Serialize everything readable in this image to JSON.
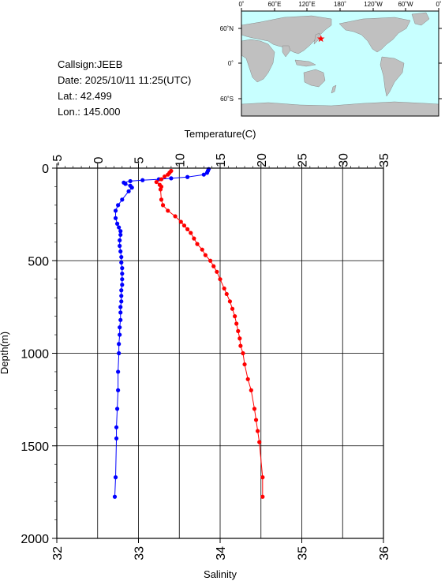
{
  "header": {
    "callsign": "Callsign:JEEB",
    "date": "Date:  2025/10/11 11:25(UTC)",
    "lat": "Lat.:  42.499",
    "lon": "Lon.:  145.000"
  },
  "map": {
    "top_labels": [
      "0˚",
      "60˚E",
      "120˚E",
      "180˚",
      "120˚W",
      "60˚W",
      "0˚"
    ],
    "side_labels": [
      "60˚N",
      "0˚",
      "60˚S"
    ],
    "ocean_color": "#c8ffff",
    "land_color": "#c0c0c0",
    "marker_color": "#ff0000",
    "station": {
      "lat": 42.499,
      "lon": 145.0
    }
  },
  "chart_data": {
    "type": "scatter",
    "ylabel": "Depth(m)",
    "x_top_label": "Temperature(C)",
    "x_bottom_label": "Salinity",
    "y_ticks": [
      "0",
      "500",
      "1000",
      "1500",
      "2000"
    ],
    "temp_ticks": [
      "-5",
      "0",
      "5",
      "10",
      "15",
      "20",
      "25",
      "30",
      "35"
    ],
    "sal_ticks": [
      "32",
      "33",
      "34",
      "35",
      "36"
    ],
    "ylim": [
      0,
      2000
    ],
    "temp_lim": [
      -5,
      35
    ],
    "sal_lim": [
      32,
      36
    ],
    "series": [
      {
        "axis": "temperature",
        "color": "#0000ff",
        "points": [
          [
            13.6,
            5
          ],
          [
            13.5,
            15
          ],
          [
            13.4,
            25
          ],
          [
            13.0,
            35
          ],
          [
            11.0,
            48
          ],
          [
            9.0,
            55
          ],
          [
            7.5,
            60
          ],
          [
            5.5,
            65
          ],
          [
            4.0,
            70
          ],
          [
            3.2,
            78
          ],
          [
            3.4,
            85
          ],
          [
            4.0,
            95
          ],
          [
            4.2,
            105
          ],
          [
            3.8,
            125
          ],
          [
            3.0,
            170
          ],
          [
            2.5,
            200
          ],
          [
            2.2,
            230
          ],
          [
            2.2,
            270
          ],
          [
            2.4,
            300
          ],
          [
            2.6,
            320
          ],
          [
            2.8,
            340
          ],
          [
            2.8,
            360
          ],
          [
            2.7,
            390
          ],
          [
            2.7,
            420
          ],
          [
            2.8,
            450
          ],
          [
            2.9,
            480
          ],
          [
            2.9,
            510
          ],
          [
            3.0,
            540
          ],
          [
            3.0,
            570
          ],
          [
            3.0,
            600
          ],
          [
            3.0,
            630
          ],
          [
            2.9,
            660
          ],
          [
            2.9,
            690
          ],
          [
            2.9,
            720
          ],
          [
            2.8,
            750
          ],
          [
            2.8,
            780
          ],
          [
            2.8,
            820
          ],
          [
            2.7,
            860
          ],
          [
            2.7,
            900
          ],
          [
            2.6,
            950
          ],
          [
            2.6,
            1000
          ],
          [
            2.5,
            1100
          ],
          [
            2.5,
            1200
          ],
          [
            2.4,
            1300
          ],
          [
            2.3,
            1400
          ],
          [
            2.3,
            1460
          ],
          [
            2.2,
            1670
          ],
          [
            2.1,
            1775
          ]
        ]
      },
      {
        "axis": "salinity",
        "color": "#ff0000",
        "points": [
          [
            33.4,
            15
          ],
          [
            33.38,
            25
          ],
          [
            33.36,
            35
          ],
          [
            33.32,
            45
          ],
          [
            33.28,
            60
          ],
          [
            33.22,
            75
          ],
          [
            33.26,
            90
          ],
          [
            33.28,
            100
          ],
          [
            33.27,
            115
          ],
          [
            33.28,
            170
          ],
          [
            33.3,
            200
          ],
          [
            33.36,
            230
          ],
          [
            33.45,
            260
          ],
          [
            33.52,
            290
          ],
          [
            33.56,
            310
          ],
          [
            33.6,
            330
          ],
          [
            33.64,
            350
          ],
          [
            33.68,
            380
          ],
          [
            33.72,
            410
          ],
          [
            33.78,
            440
          ],
          [
            33.82,
            470
          ],
          [
            33.88,
            500
          ],
          [
            33.92,
            530
          ],
          [
            33.96,
            560
          ],
          [
            34.0,
            600
          ],
          [
            34.05,
            650
          ],
          [
            34.08,
            680
          ],
          [
            34.12,
            720
          ],
          [
            34.15,
            760
          ],
          [
            34.18,
            800
          ],
          [
            34.2,
            840
          ],
          [
            34.22,
            880
          ],
          [
            34.24,
            920
          ],
          [
            34.25,
            960
          ],
          [
            34.28,
            1000
          ],
          [
            34.3,
            1060
          ],
          [
            34.34,
            1140
          ],
          [
            34.38,
            1200
          ],
          [
            34.42,
            1300
          ],
          [
            34.44,
            1360
          ],
          [
            34.46,
            1420
          ],
          [
            34.48,
            1480
          ],
          [
            34.52,
            1670
          ],
          [
            34.52,
            1775
          ]
        ]
      }
    ]
  }
}
